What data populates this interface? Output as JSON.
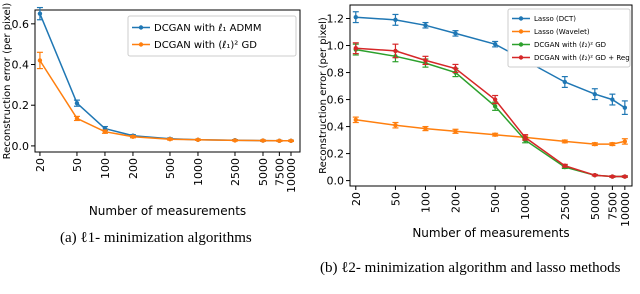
{
  "chart_data": [
    {
      "type": "line",
      "xscale": "log",
      "xlim": [
        17.7,
        12500
      ],
      "ylim": [
        -0.03,
        0.668
      ],
      "xlabel": "Number of measurements",
      "ylabel": "Reconstruction error (per pixel)",
      "caption": "(a) ℓ1- minimization algorithms",
      "x": [
        20,
        50,
        100,
        200,
        500,
        1000,
        2500,
        5000,
        7500,
        10000
      ],
      "xticks": [
        20,
        50,
        100,
        200,
        500,
        1000,
        2500,
        5000,
        7500,
        10000
      ],
      "yticks": [
        0.0,
        0.2,
        0.4,
        0.6
      ],
      "legend": "upper right",
      "grid": false,
      "series": [
        {
          "name": "DCGAN with ℓ₁ ADMM",
          "color": "#1f77b4",
          "values": [
            0.65,
            0.21,
            0.085,
            0.05,
            0.035,
            0.03,
            0.028,
            0.026,
            0.025,
            0.025
          ],
          "errors": [
            0.03,
            0.015,
            0.01,
            0.005,
            0.004,
            0.003,
            0.003,
            0.003,
            0.003,
            0.003
          ]
        },
        {
          "name": "DCGAN with (ℓ₁)² GD",
          "color": "#ff7f0e",
          "values": [
            0.42,
            0.135,
            0.07,
            0.045,
            0.033,
            0.03,
            0.027,
            0.026,
            0.025,
            0.025
          ],
          "errors": [
            0.04,
            0.01,
            0.008,
            0.005,
            0.004,
            0.003,
            0.003,
            0.003,
            0.003,
            0.003
          ]
        }
      ]
    },
    {
      "type": "line",
      "xscale": "log",
      "xlim": [
        17.5,
        11800
      ],
      "ylim": [
        -0.04,
        1.3
      ],
      "xlabel": "Number of measurements",
      "ylabel": "Reconstruction error (per pixel)",
      "caption": "(b) ℓ2- minimization algorithm and lasso methods",
      "x": [
        20,
        50,
        100,
        200,
        500,
        1000,
        2500,
        5000,
        7500,
        10000
      ],
      "xticks": [
        20,
        50,
        100,
        200,
        500,
        1000,
        2500,
        5000,
        7500,
        10000
      ],
      "yticks": [
        0.0,
        0.2,
        0.4,
        0.6,
        0.8,
        1.0,
        1.2
      ],
      "legend": "upper right",
      "grid": false,
      "series": [
        {
          "name": "Lasso (DCT)",
          "color": "#1f77b4",
          "values": [
            1.21,
            1.19,
            1.15,
            1.09,
            1.01,
            0.89,
            0.73,
            0.64,
            0.6,
            0.54
          ],
          "errors": [
            0.04,
            0.04,
            0.02,
            0.02,
            0.02,
            0.03,
            0.04,
            0.04,
            0.04,
            0.05
          ]
        },
        {
          "name": "Lasso (Wavelet)",
          "color": "#ff7f0e",
          "values": [
            0.45,
            0.41,
            0.385,
            0.365,
            0.34,
            0.32,
            0.29,
            0.27,
            0.27,
            0.29
          ],
          "errors": [
            0.02,
            0.02,
            0.015,
            0.015,
            0.01,
            0.01,
            0.01,
            0.01,
            0.01,
            0.02
          ]
        },
        {
          "name": "DCGAN with (ℓ₂)² GD",
          "color": "#2ca02c",
          "values": [
            0.97,
            0.92,
            0.87,
            0.8,
            0.55,
            0.3,
            0.1,
            0.04,
            0.03,
            0.03
          ],
          "errors": [
            0.04,
            0.04,
            0.03,
            0.03,
            0.03,
            0.02,
            0.01,
            0.005,
            0.005,
            0.005
          ]
        },
        {
          "name": "DCGAN with (ℓ₂)² GD + Reg",
          "color": "#d62728",
          "values": [
            0.98,
            0.96,
            0.89,
            0.83,
            0.6,
            0.32,
            0.11,
            0.04,
            0.03,
            0.03
          ],
          "errors": [
            0.04,
            0.05,
            0.03,
            0.03,
            0.03,
            0.02,
            0.01,
            0.005,
            0.005,
            0.005
          ]
        }
      ]
    }
  ]
}
